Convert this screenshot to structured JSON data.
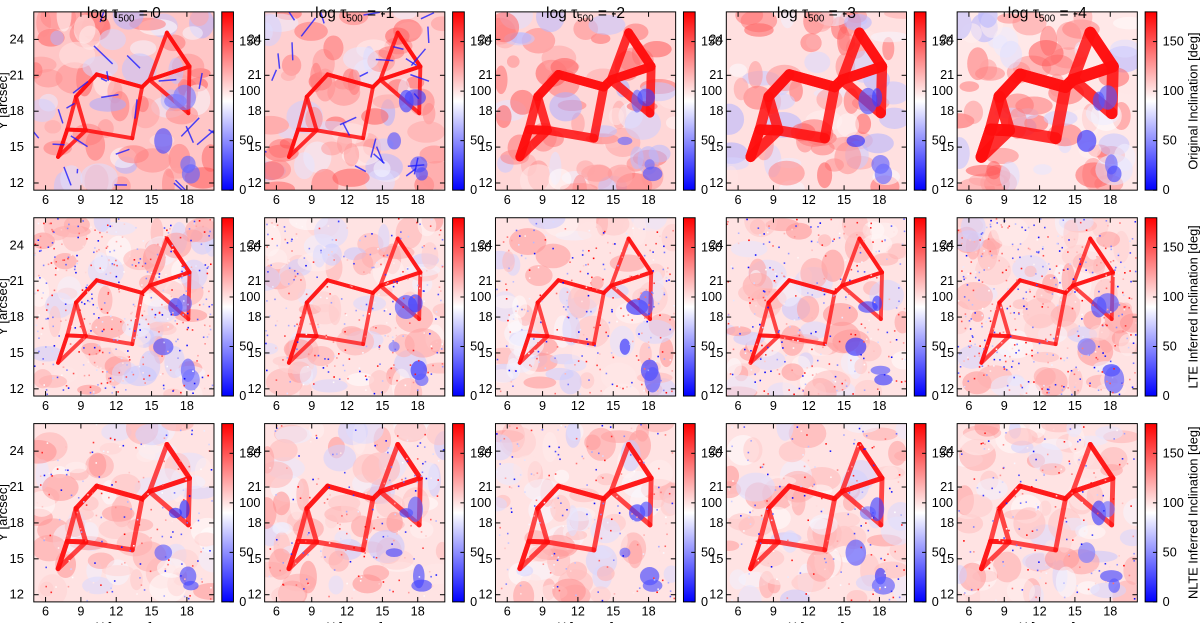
{
  "chart_data": {
    "type": "heatmap",
    "layout": {
      "rows": 3,
      "cols": 5
    },
    "columns": [
      {
        "title_prefix": "log τ",
        "title_sub": "500",
        "title_suffix": " = 0"
      },
      {
        "title_prefix": "log τ",
        "title_sub": "500",
        "title_suffix": " = -1"
      },
      {
        "title_prefix": "log τ",
        "title_sub": "500",
        "title_suffix": " = -2"
      },
      {
        "title_prefix": "log τ",
        "title_sub": "500",
        "title_suffix": " = -3"
      },
      {
        "title_prefix": "log τ",
        "title_sub": "500",
        "title_suffix": " = -4"
      }
    ],
    "rows": [
      {
        "colorbar_label": "Original Inclination [deg]",
        "style": "original"
      },
      {
        "colorbar_label": "LTE Inferred Inclination [deg]",
        "style": "lte"
      },
      {
        "colorbar_label": "NLTE Inferred Inclination [deg]",
        "style": "nlte"
      }
    ],
    "xlabel": "X [arcsec]",
    "ylabel": "Y [arcsec]",
    "xlim": [
      5,
      20.3
    ],
    "ylim": [
      11.4,
      26.3
    ],
    "x_ticks": [
      "6",
      "9",
      "12",
      "15",
      "18"
    ],
    "y_ticks": [
      "12",
      "15",
      "18",
      "21",
      "24"
    ],
    "colorbar": {
      "range": [
        0,
        180
      ],
      "ticks": [
        "0",
        "50",
        "100",
        "150"
      ],
      "colormap": [
        "#0000ff",
        "#ffffff",
        "#ff0000"
      ]
    },
    "z_unit": "deg"
  }
}
